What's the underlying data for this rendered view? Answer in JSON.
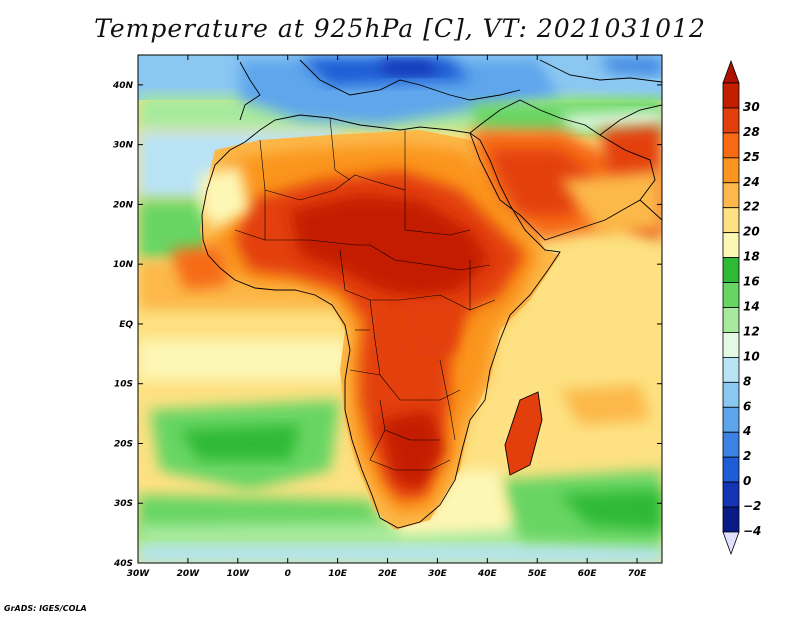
{
  "title": "Temperature at 925hPa [C], VT: 2021031012",
  "credit": "GrADS: IGES/COLA",
  "map": {
    "projection": "latlon",
    "lon_range": [
      -30,
      75
    ],
    "lat_range": [
      -40,
      45
    ],
    "lon_ticks": [
      {
        "value": -30,
        "label": "30W"
      },
      {
        "value": -20,
        "label": "20W"
      },
      {
        "value": -10,
        "label": "10W"
      },
      {
        "value": 0,
        "label": "0"
      },
      {
        "value": 10,
        "label": "10E"
      },
      {
        "value": 20,
        "label": "20E"
      },
      {
        "value": 30,
        "label": "30E"
      },
      {
        "value": 40,
        "label": "40E"
      },
      {
        "value": 50,
        "label": "50E"
      },
      {
        "value": 60,
        "label": "60E"
      },
      {
        "value": 70,
        "label": "70E"
      }
    ],
    "lat_ticks": [
      {
        "value": 40,
        "label": "40N"
      },
      {
        "value": 30,
        "label": "30N"
      },
      {
        "value": 20,
        "label": "20N"
      },
      {
        "value": 10,
        "label": "10N"
      },
      {
        "value": 0,
        "label": "EQ"
      },
      {
        "value": -10,
        "label": "10S"
      },
      {
        "value": -20,
        "label": "20S"
      },
      {
        "value": -30,
        "label": "30S"
      },
      {
        "value": -40,
        "label": "40S"
      }
    ]
  },
  "colorbar": {
    "levels": [
      {
        "label": "30",
        "color": "#c41e00"
      },
      {
        "label": "28",
        "color": "#e33f0c"
      },
      {
        "label": "25",
        "color": "#f66a14"
      },
      {
        "label": "24",
        "color": "#fb951f"
      },
      {
        "label": "22",
        "color": "#fcb84a"
      },
      {
        "label": "20",
        "color": "#fde182"
      },
      {
        "label": "18",
        "color": "#fdf7b6"
      },
      {
        "label": "16",
        "color": "#2fb935"
      },
      {
        "label": "14",
        "color": "#68d563"
      },
      {
        "label": "12",
        "color": "#a7ea9d"
      },
      {
        "label": "10",
        "color": "#e4f9e4"
      },
      {
        "label": "8",
        "color": "#b8e3f5"
      },
      {
        "label": "6",
        "color": "#8ac7f1"
      },
      {
        "label": "4",
        "color": "#5ea6ec"
      },
      {
        "label": "2",
        "color": "#3b82e2"
      },
      {
        "label": "0",
        "color": "#1f5dd6"
      },
      {
        "label": "−2",
        "color": "#1234b5"
      },
      {
        "label": "−4",
        "color": "#0a1a86"
      }
    ],
    "top_arrow_color": "#b01000",
    "bottom_arrow_color": "#e2e0ff"
  }
}
